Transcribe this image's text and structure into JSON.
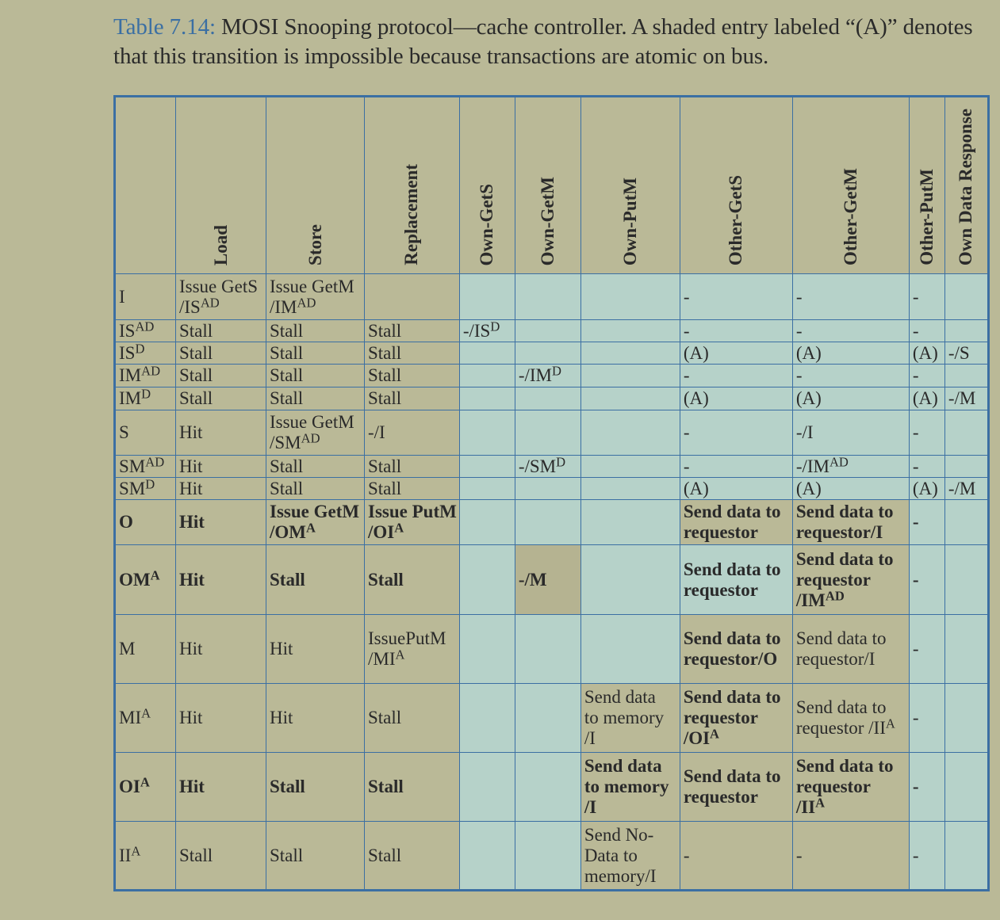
{
  "caption": {
    "label": "Table 7.14:",
    "text": " MOSI Snooping protocol—cache controller. A shaded entry labeled “(A)” denotes that this transition is impossible because transactions are atomic on bus."
  },
  "headers": [
    "Load",
    "Store",
    "Replacement",
    "Own-GetS",
    "Own-GetM",
    "Own-PutM",
    "Other-GetS",
    "Other-GetM",
    "Other-PutM",
    "Own Data Response"
  ],
  "rows": [
    {
      "state": "I",
      "cells": [
        "Issue GetS /IS^AD",
        "Issue GetM /IM^AD",
        "",
        "",
        "",
        "",
        "-",
        "-",
        "-",
        ""
      ]
    },
    {
      "state": "IS^AD",
      "cells": [
        "Stall",
        "Stall",
        "Stall",
        "-/IS^D",
        "",
        "",
        "-",
        "-",
        "-",
        ""
      ]
    },
    {
      "state": "IS^D",
      "cells": [
        "Stall",
        "Stall",
        "Stall",
        "",
        "",
        "",
        "(A)",
        "(A)",
        "(A)",
        "-/S"
      ]
    },
    {
      "state": "IM^AD",
      "cells": [
        "Stall",
        "Stall",
        "Stall",
        "",
        "-/IM^D",
        "",
        "-",
        "-",
        "-",
        ""
      ]
    },
    {
      "state": "IM^D",
      "cells": [
        "Stall",
        "Stall",
        "Stall",
        "",
        "",
        "",
        "(A)",
        "(A)",
        "(A)",
        "-/M"
      ]
    },
    {
      "state": "S",
      "cells": [
        "Hit",
        "Issue GetM /SM^AD",
        "-/I",
        "",
        "",
        "",
        "-",
        "-/I",
        "-",
        ""
      ]
    },
    {
      "state": "SM^AD",
      "cells": [
        "Hit",
        "Stall",
        "Stall",
        "",
        "-/SM^D",
        "",
        "-",
        "-/IM^AD",
        "-",
        ""
      ]
    },
    {
      "state": "SM^D",
      "cells": [
        "Hit",
        "Stall",
        "Stall",
        "",
        "",
        "",
        "(A)",
        "(A)",
        "(A)",
        "-/M"
      ]
    },
    {
      "state": "O",
      "cells": [
        "Hit",
        "Issue GetM /OM^A",
        "Issue PutM /OI^A",
        "",
        "",
        "",
        "Send data to requestor",
        "Send data to requestor/I",
        "-",
        ""
      ]
    },
    {
      "state": "OM^A",
      "cells": [
        "Hit",
        "Stall",
        "Stall",
        "",
        "-/M",
        "",
        "Send data to requestor",
        "Send data to requestor /IM^AD",
        "-",
        ""
      ]
    },
    {
      "state": "M",
      "cells": [
        "Hit",
        "Hit",
        "IssuePutM /MI^A",
        "",
        "",
        "",
        "Send data to requestor/O",
        "Send data to requestor/I",
        "-",
        ""
      ]
    },
    {
      "state": "MI^A",
      "cells": [
        "Hit",
        "Hit",
        "Stall",
        "",
        "",
        "Send data to memory /I",
        "Send data to requestor /OI^A",
        "Send data to requestor /II^A",
        "-",
        ""
      ]
    },
    {
      "state": "OI^A",
      "cells": [
        "Hit",
        "Stall",
        "Stall",
        "",
        "",
        "Send data to memory /I",
        "Send data to requestor",
        "Send data to requestor /II^A",
        "-",
        ""
      ]
    },
    {
      "state": "II^A",
      "cells": [
        "Stall",
        "Stall",
        "Stall",
        "",
        "",
        "Send No-Data to memory/I",
        "-",
        "-",
        "-",
        ""
      ]
    }
  ],
  "colors": {
    "background": "#bab997",
    "shaded": "#b6d2c9",
    "atomic": "#b5b391",
    "border": "#3b6fa3"
  }
}
